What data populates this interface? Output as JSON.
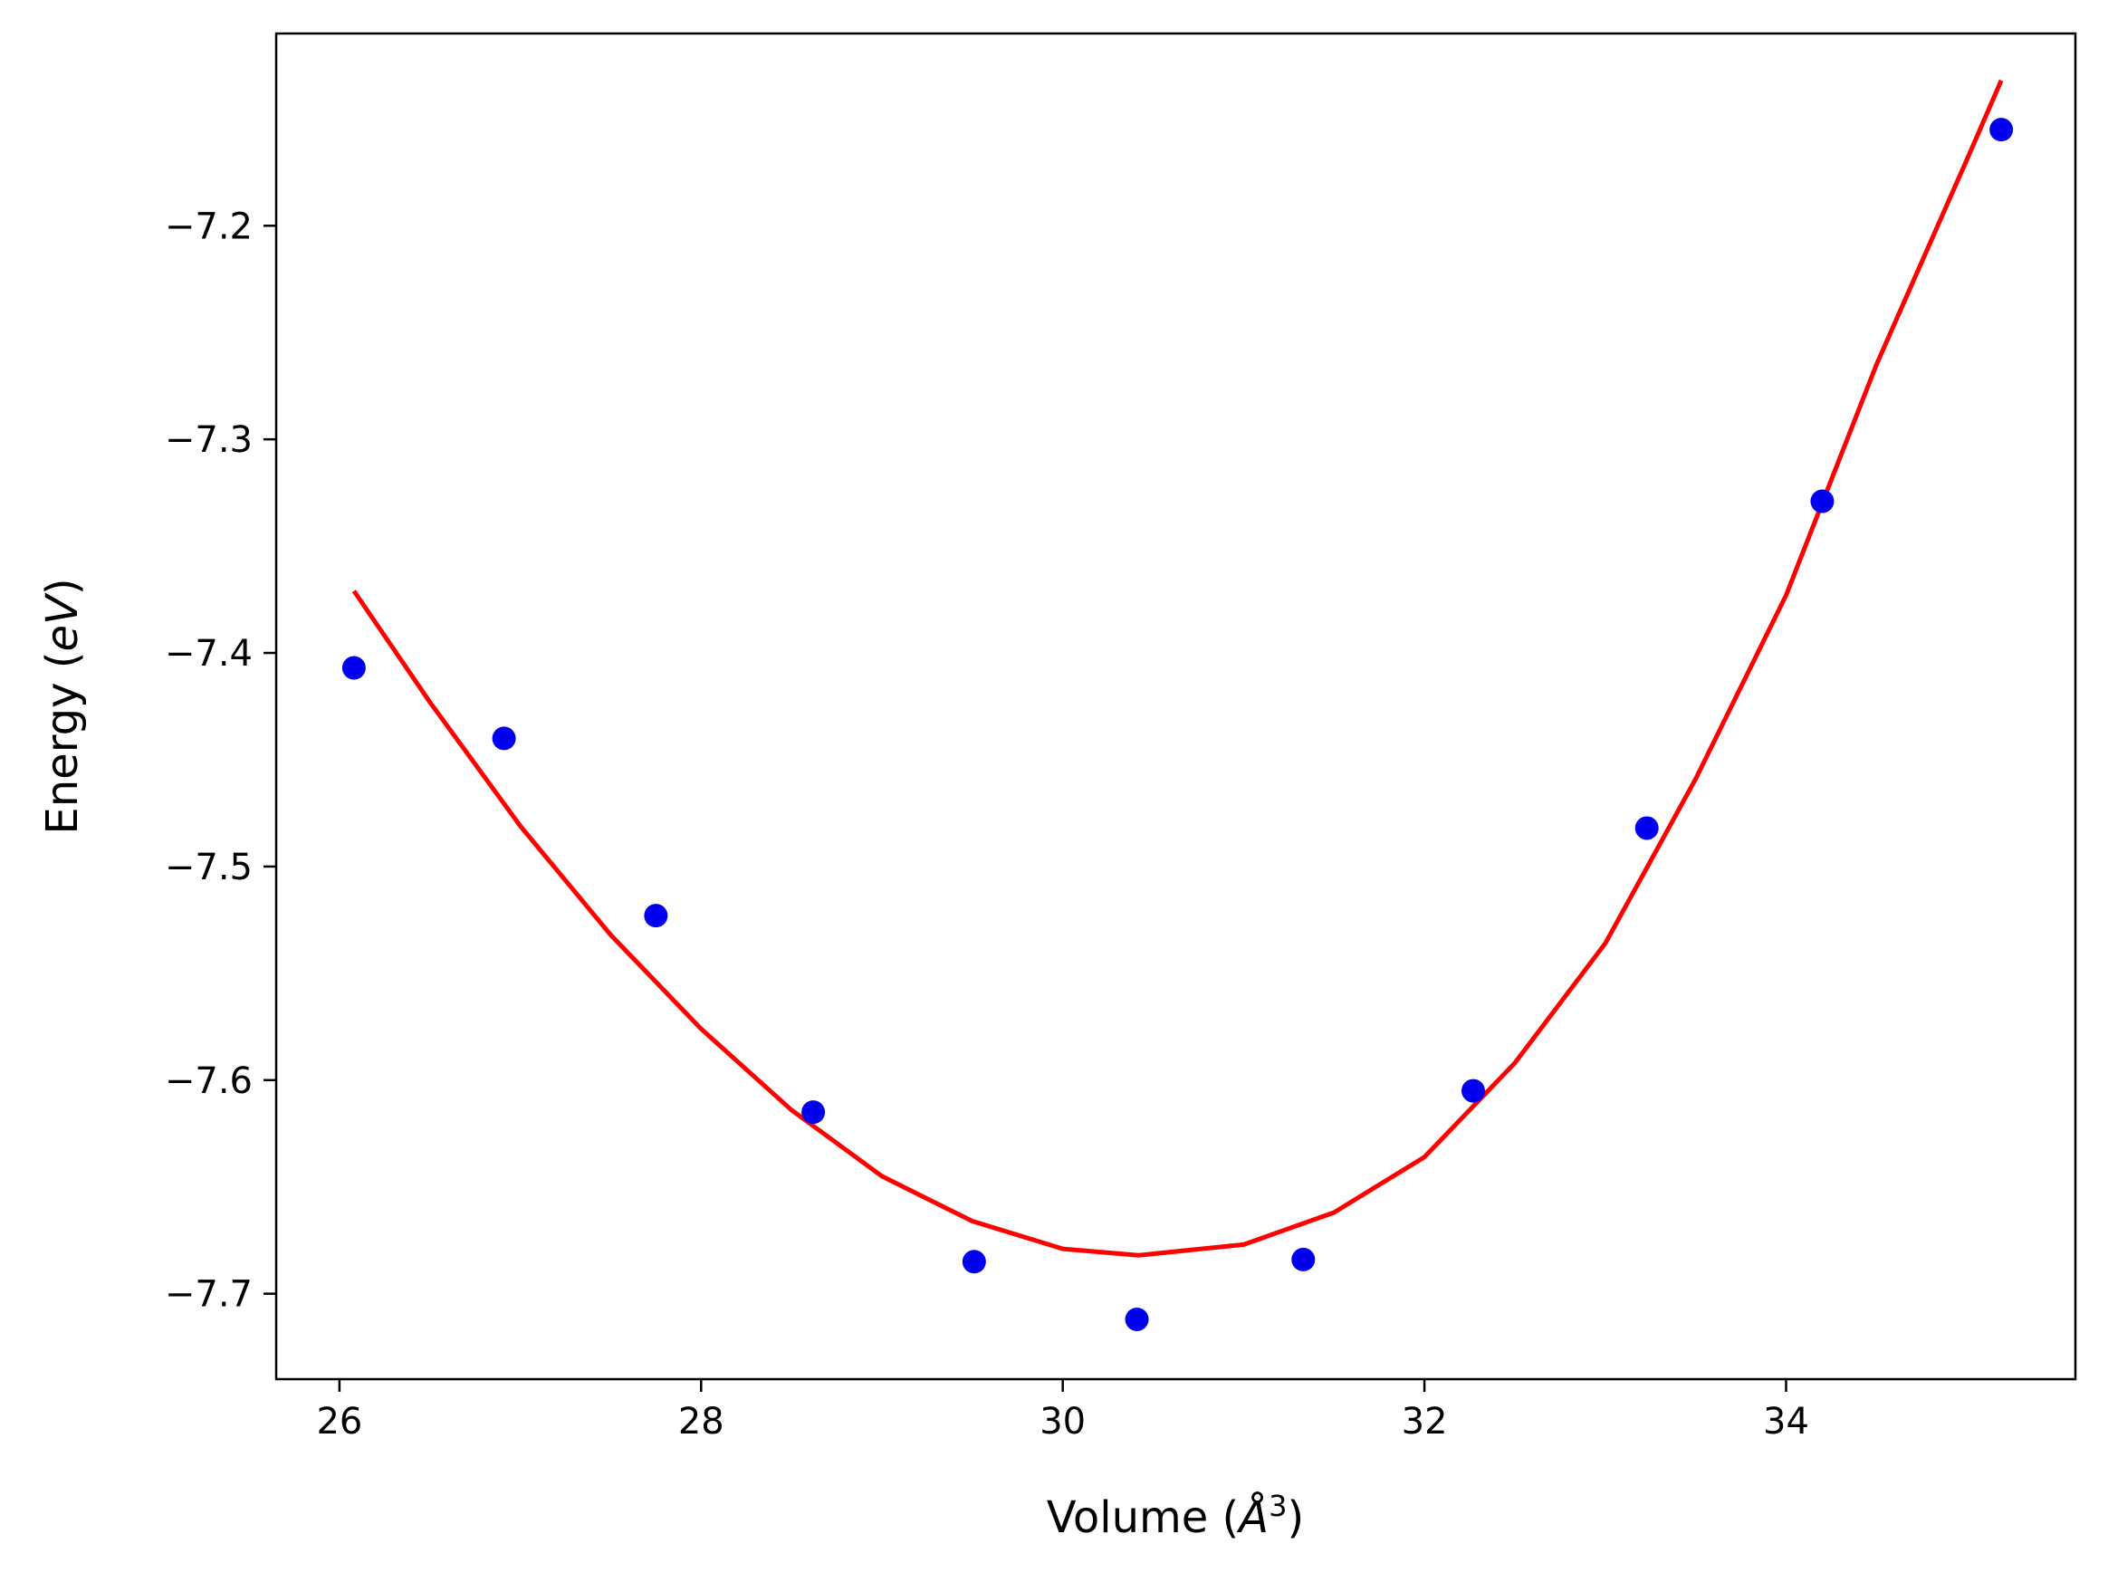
{
  "chart_data": {
    "type": "scatter",
    "xlabel_main": "Volume (",
    "xlabel_symbol": "Å",
    "xlabel_sup": "3",
    "xlabel_close": ")",
    "ylabel_main": "Energy (",
    "ylabel_unit": "eV",
    "ylabel_close": ")",
    "xlim": [
      25.65,
      35.6
    ],
    "ylim": [
      -7.74,
      -7.11
    ],
    "xticks": [
      26,
      28,
      30,
      32,
      34
    ],
    "xtick_labels": [
      "26",
      "28",
      "30",
      "32",
      "34"
    ],
    "yticks": [
      -7.2,
      -7.3,
      -7.4,
      -7.5,
      -7.6,
      -7.7
    ],
    "ytick_labels": [
      "−7.2",
      "−7.3",
      "−7.4",
      "−7.5",
      "−7.6",
      "−7.7"
    ],
    "grid": false,
    "series": [
      {
        "kind": "points",
        "color": "#0000ee",
        "x": [
          26.08,
          26.91,
          27.75,
          28.62,
          29.51,
          30.41,
          31.33,
          32.27,
          33.23,
          34.2,
          35.19
        ],
        "y": [
          -7.407,
          -7.44,
          -7.523,
          -7.615,
          -7.685,
          -7.712,
          -7.684,
          -7.605,
          -7.482,
          -7.329,
          -7.155
        ]
      },
      {
        "kind": "fit-line",
        "color": "#ff0000",
        "x": [
          26.08,
          26.5,
          27.0,
          27.5,
          28.0,
          28.5,
          29.0,
          29.5,
          30.0,
          30.42,
          31.0,
          31.5,
          32.0,
          32.5,
          33.0,
          33.5,
          34.0,
          34.5,
          35.0,
          35.19
        ],
        "y": [
          -7.371,
          -7.423,
          -7.481,
          -7.532,
          -7.576,
          -7.614,
          -7.645,
          -7.666,
          -7.679,
          -7.682,
          -7.677,
          -7.662,
          -7.636,
          -7.592,
          -7.536,
          -7.459,
          -7.373,
          -7.265,
          -7.169,
          -7.132
        ]
      }
    ]
  }
}
